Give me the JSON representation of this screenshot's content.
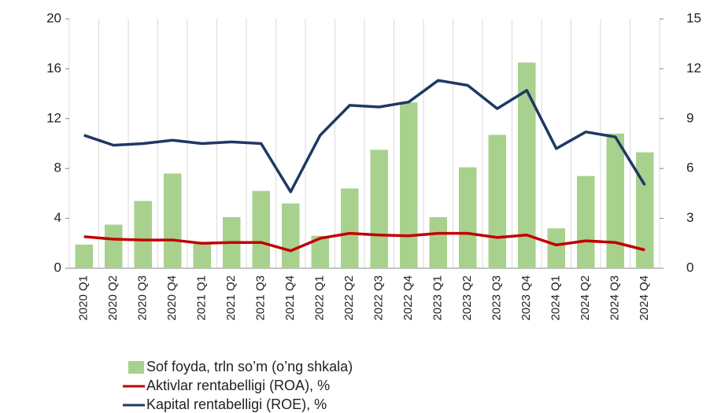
{
  "chart_data": {
    "type": "bar-line",
    "categories": [
      "2020 Q1",
      "2020 Q2",
      "2020 Q3",
      "2020 Q4",
      "2021 Q1",
      "2021 Q2",
      "2021 Q3",
      "2021 Q4",
      "2022 Q1",
      "2022 Q2",
      "2022 Q3",
      "2022 Q4",
      "2023 Q1",
      "2023 Q2",
      "2023 Q3",
      "2023 Q4",
      "2024 Q1",
      "2024 Q2",
      "2024 Q3",
      "2024 Q4"
    ],
    "series": [
      {
        "name": "Sof foyda, trln so’m (o’ng shkala)",
        "type": "bar",
        "color": "#a9d18e",
        "axis": "y",
        "values": [
          1.9,
          3.5,
          5.4,
          7.6,
          2.0,
          4.1,
          6.2,
          5.2,
          2.6,
          6.4,
          9.5,
          13.3,
          4.1,
          8.1,
          10.7,
          16.5,
          3.2,
          7.4,
          10.8,
          9.3
        ]
      },
      {
        "name": "Aktivlar rentabelligi (ROA), %",
        "type": "line",
        "color": "#c00000",
        "axis": "y2",
        "values": [
          1.9,
          1.75,
          1.7,
          1.7,
          1.5,
          1.55,
          1.55,
          1.05,
          1.8,
          2.1,
          2.0,
          1.95,
          2.1,
          2.1,
          1.85,
          2.0,
          1.4,
          1.65,
          1.55,
          1.1
        ]
      },
      {
        "name": "Kapital rentabelligi (ROE), %",
        "type": "line",
        "color": "#1f3864",
        "axis": "y2",
        "values": [
          8.0,
          7.4,
          7.5,
          7.7,
          7.5,
          7.6,
          7.5,
          4.6,
          8.0,
          9.8,
          9.7,
          10.0,
          11.3,
          11.0,
          9.6,
          10.7,
          7.2,
          8.2,
          7.9,
          5.0
        ]
      }
    ],
    "ylim": [
      0,
      20
    ],
    "yticks": [
      0,
      4,
      8,
      12,
      16,
      20
    ],
    "y2lim": [
      0,
      15
    ],
    "y2ticks": [
      0,
      3,
      6,
      9,
      12,
      15
    ]
  }
}
